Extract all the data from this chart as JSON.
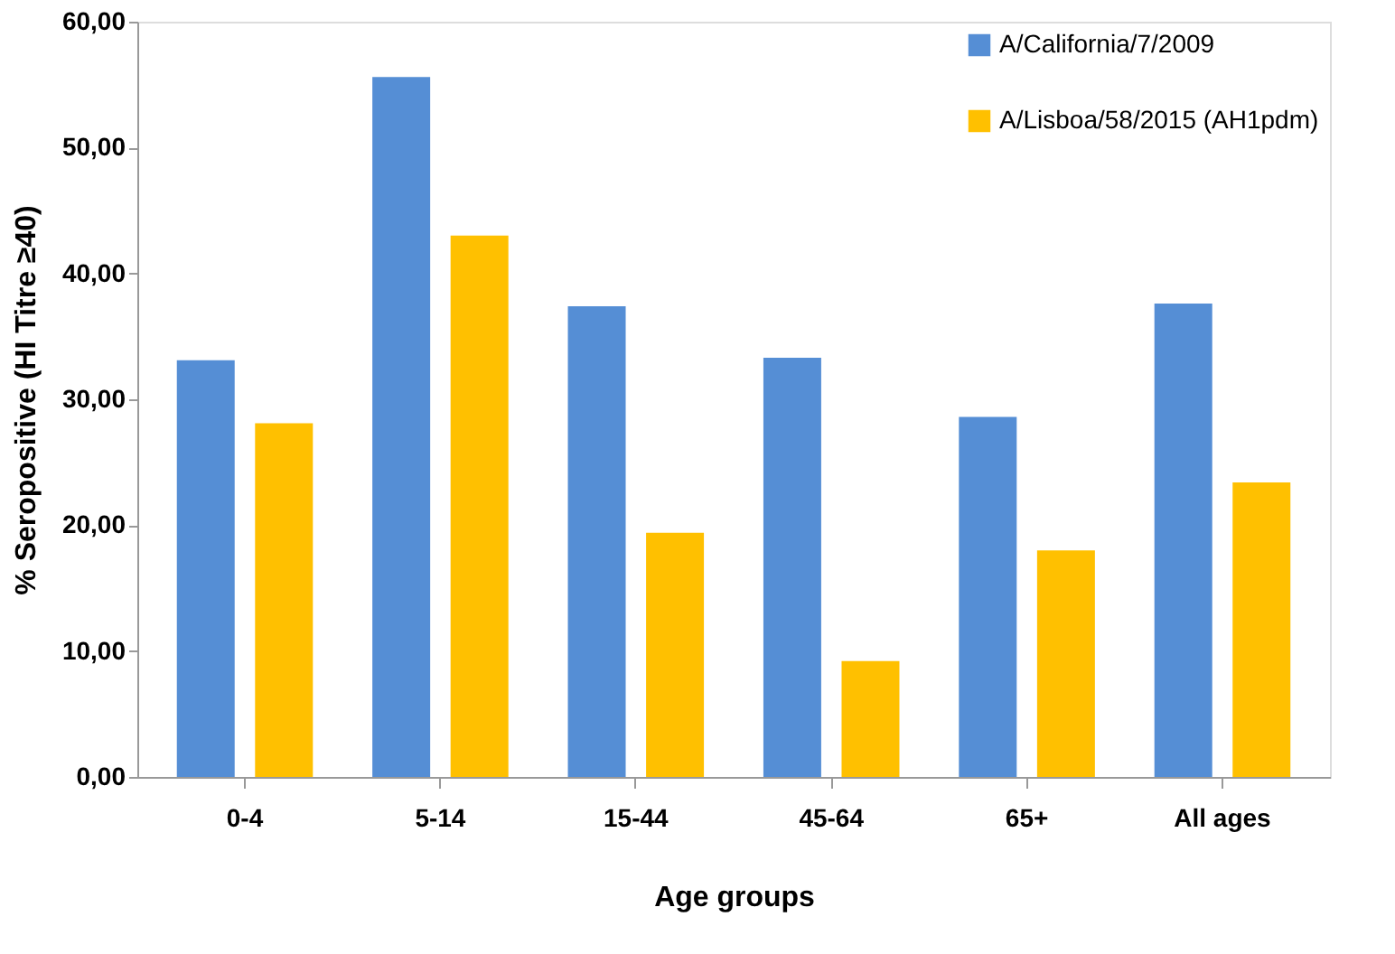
{
  "chart_data": {
    "type": "bar",
    "xlabel": "Age groups",
    "ylabel": "% Seropositive  (HI Titre ≥40)",
    "categories": [
      "0-4",
      "5-14",
      "15-44",
      "45-64",
      "65+",
      "All ages"
    ],
    "series": [
      {
        "name": "A/California/7/2009",
        "color": "#558ed5",
        "values": [
          33.1,
          55.6,
          37.4,
          33.3,
          28.6,
          37.6
        ]
      },
      {
        "name": "A/Lisboa/58/2015 (AH1pdm)",
        "color": "#ffc000",
        "values": [
          28.1,
          43.0,
          19.4,
          9.2,
          18.0,
          23.4
        ]
      }
    ],
    "ylim": [
      0,
      60
    ],
    "yticks": [
      {
        "value": 0,
        "label": "0,00"
      },
      {
        "value": 10,
        "label": "10,00"
      },
      {
        "value": 20,
        "label": "20,00"
      },
      {
        "value": 30,
        "label": "30,00"
      },
      {
        "value": 40,
        "label": "40,00"
      },
      {
        "value": 50,
        "label": "50,00"
      },
      {
        "value": 60,
        "label": "60,00"
      }
    ],
    "grid": false,
    "legend": "top right"
  }
}
